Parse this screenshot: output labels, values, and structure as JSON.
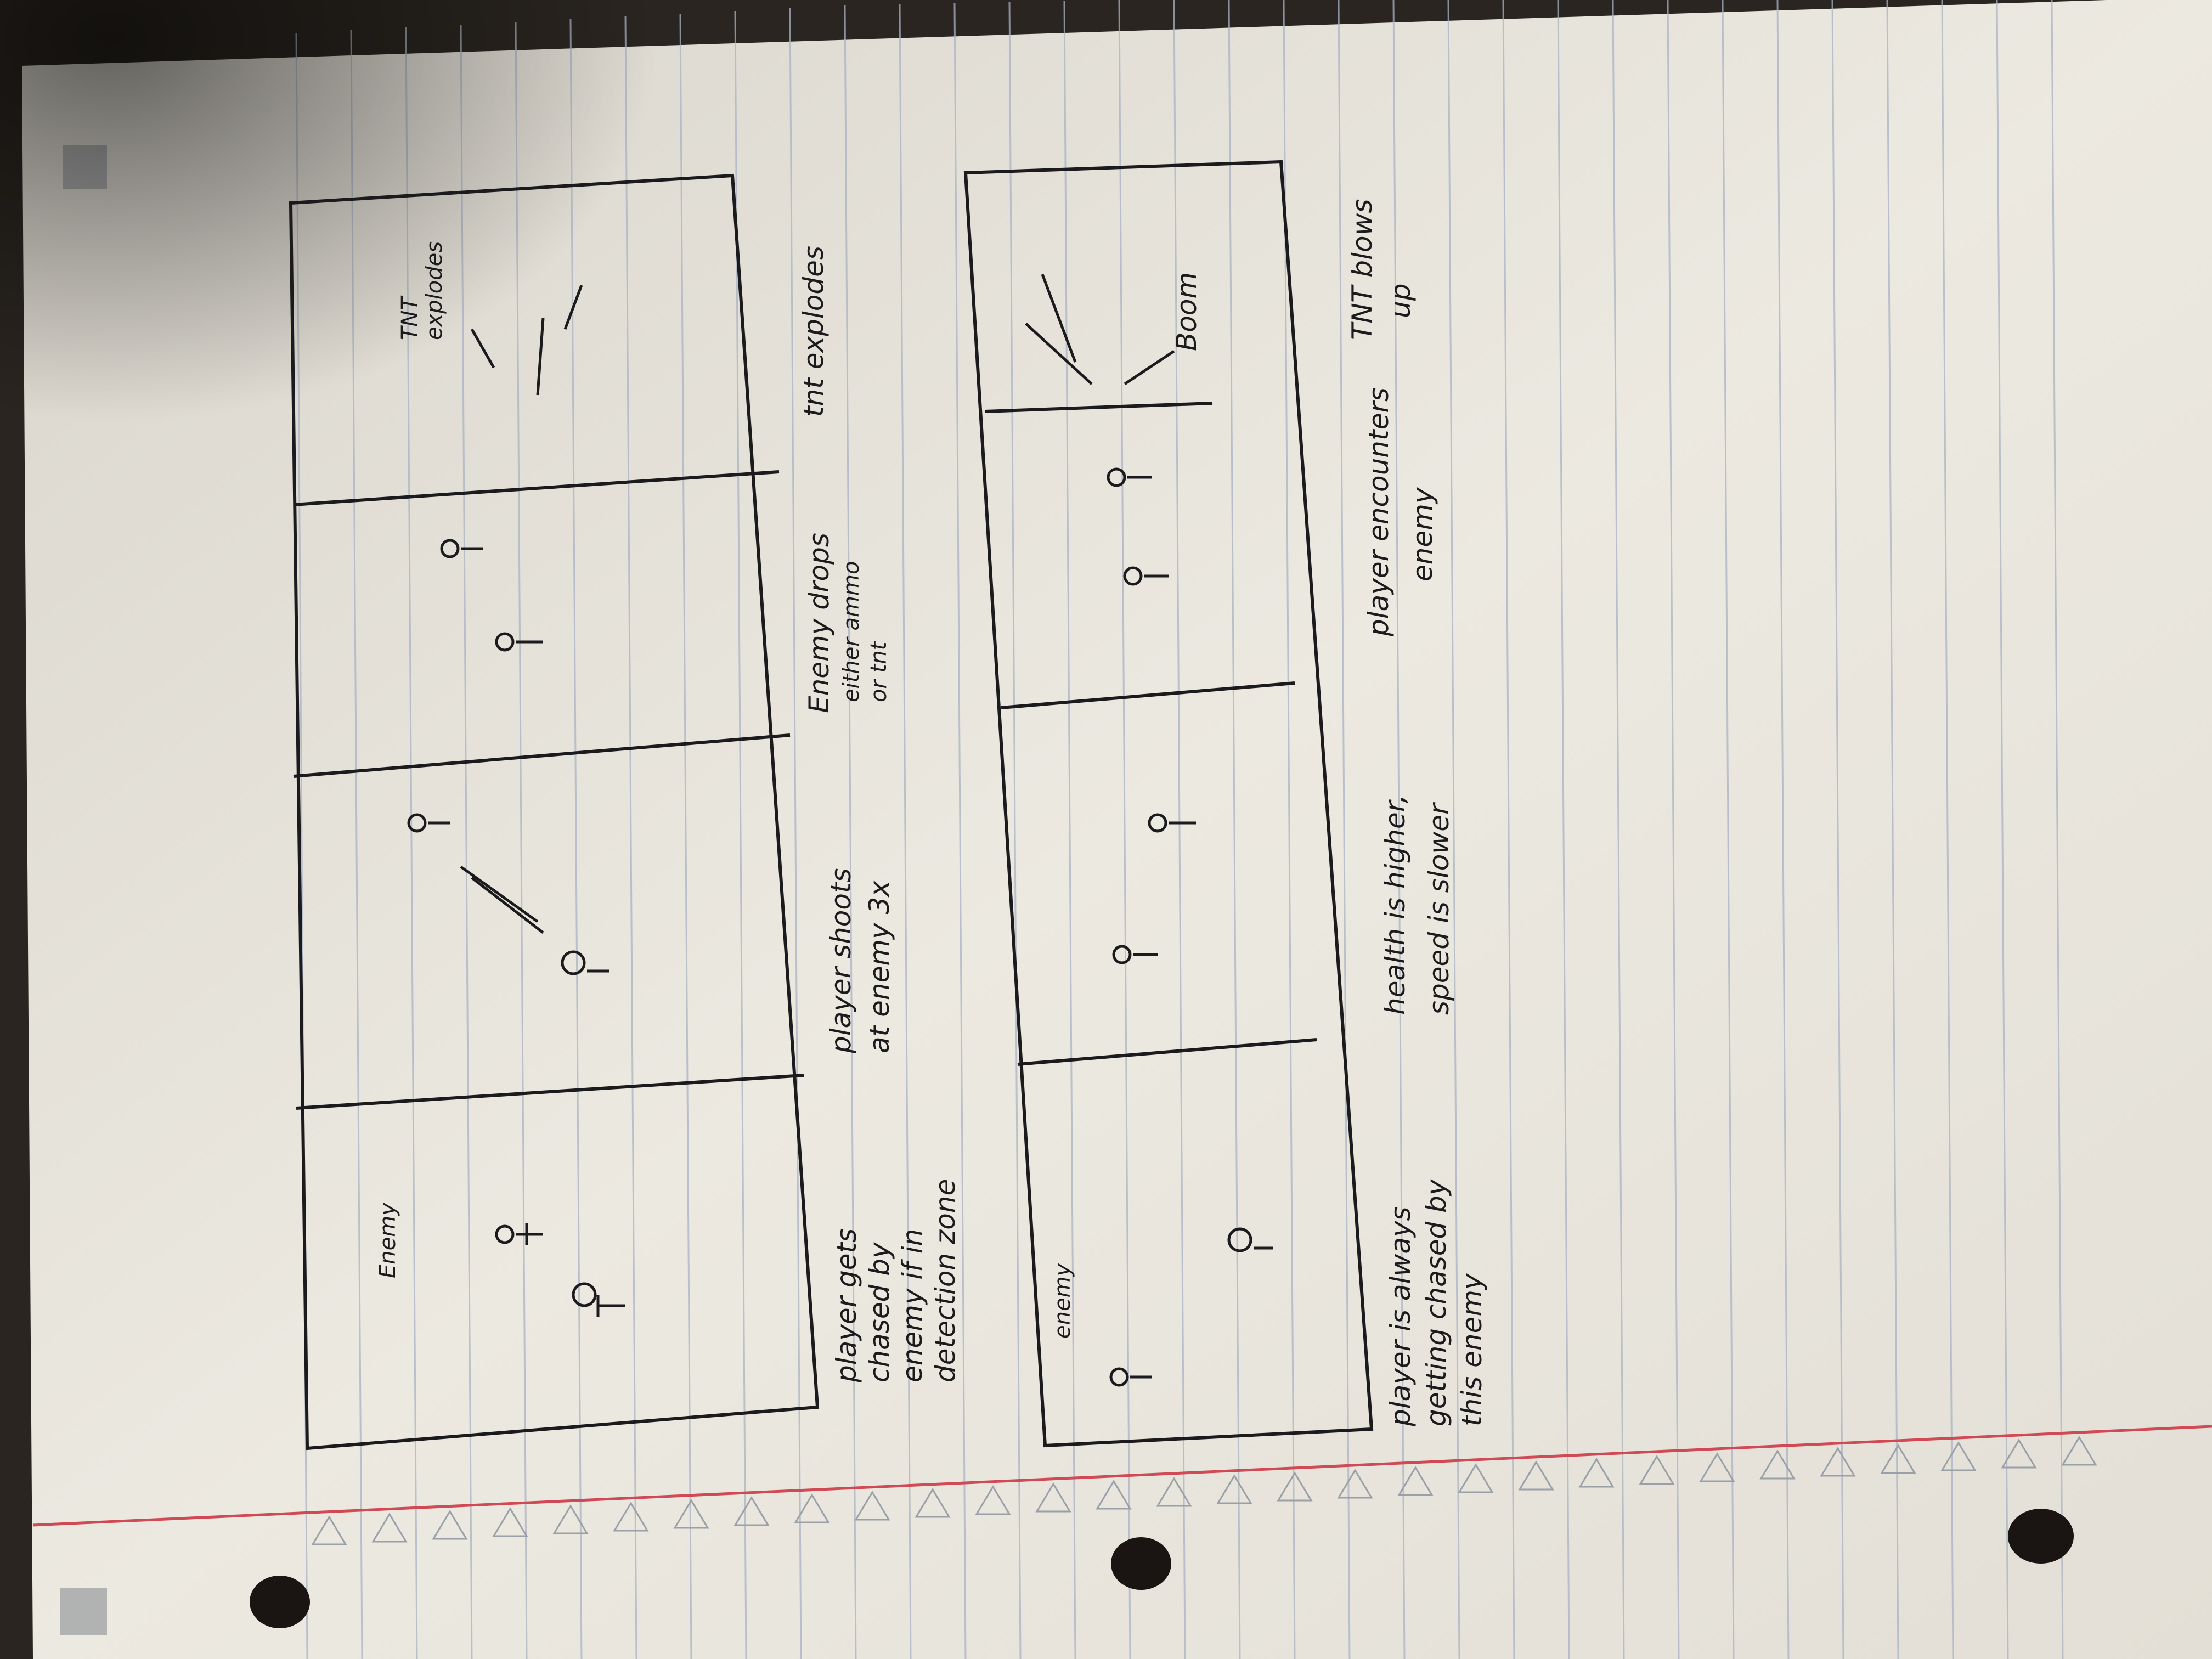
{
  "page": {
    "description_kind": "photo of handwritten storyboard on lined notebook paper",
    "colors": {
      "paper": "#ece8df",
      "ruled_line": "#a9b3c4",
      "margin_line": "#d04a55",
      "ink": "#1b1b1e",
      "background": "#2a2520"
    }
  },
  "storyboard_top": {
    "panel1": {
      "label": "Enemy",
      "caption_lines": [
        "player gets",
        "chased by",
        "enemy if in",
        "detection zone"
      ]
    },
    "panel2": {
      "caption_lines": [
        "player shoots",
        "at enemy 3x"
      ]
    },
    "panel3": {
      "caption_lines": [
        "Enemy drops",
        "either ammo",
        "or tnt"
      ]
    },
    "panel4": {
      "label_lines": [
        "TNT",
        "explodes"
      ],
      "caption_lines": [
        "tnt explodes"
      ]
    }
  },
  "storyboard_bottom": {
    "panel1": {
      "label": "enemy",
      "caption_lines": [
        "player is always",
        "getting chased by",
        "this enemy"
      ]
    },
    "panel2": {
      "caption_lines": [
        "health is higher,",
        "speed is slower"
      ]
    },
    "panel3": {
      "caption_lines": [
        "player encounters",
        "enemy"
      ]
    },
    "panel4": {
      "label": "Boom",
      "caption_lines": [
        "TNT blows",
        "up"
      ]
    }
  }
}
